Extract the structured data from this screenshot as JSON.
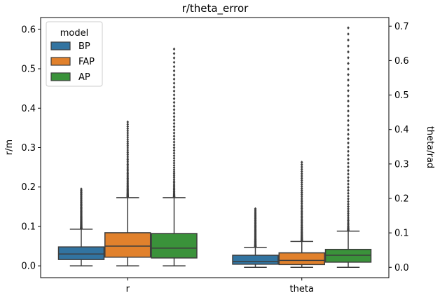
{
  "chart_data": {
    "type": "boxplot",
    "title": "r/theta_error",
    "categories": [
      "r",
      "theta"
    ],
    "left_axis": {
      "label": "r/m",
      "ylim": [
        -0.03,
        0.63
      ],
      "ticks": [
        0.0,
        0.1,
        0.2,
        0.3,
        0.4,
        0.5,
        0.6
      ],
      "tick_labels": [
        "0.0",
        "0.1",
        "0.2",
        "0.3",
        "0.4",
        "0.5",
        "0.6"
      ]
    },
    "right_axis": {
      "label": "theta/rad",
      "ylim": [
        -0.03,
        0.725
      ],
      "ticks": [
        0.0,
        0.1,
        0.2,
        0.3,
        0.4,
        0.5,
        0.6,
        0.7
      ],
      "tick_labels": [
        "0.0",
        "0.1",
        "0.2",
        "0.3",
        "0.4",
        "0.5",
        "0.6",
        "0.7"
      ]
    },
    "legend": {
      "title": "model",
      "position": "top-left",
      "entries": [
        "BP",
        "FAP",
        "AP"
      ]
    },
    "series": [
      {
        "name": "BP",
        "color": "#3274a1",
        "boxes": [
          {
            "category": "r",
            "axis": "left",
            "whisker_low": 0.0,
            "q1": 0.016,
            "median": 0.03,
            "q3": 0.048,
            "whisker_high": 0.093,
            "outlier_min": 0.095,
            "outlier_max": 0.195
          },
          {
            "category": "theta",
            "axis": "right",
            "whisker_low": 0.0,
            "q1": 0.009,
            "median": 0.017,
            "q3": 0.035,
            "whisker_high": 0.058,
            "outlier_min": 0.06,
            "outlier_max": 0.17
          }
        ]
      },
      {
        "name": "FAP",
        "color": "#e1812c",
        "boxes": [
          {
            "category": "r",
            "axis": "left",
            "whisker_low": 0.0,
            "q1": 0.022,
            "median": 0.05,
            "q3": 0.084,
            "whisker_high": 0.173,
            "outlier_min": 0.175,
            "outlier_max": 0.365
          },
          {
            "category": "theta",
            "axis": "right",
            "whisker_low": 0.0,
            "q1": 0.008,
            "median": 0.02,
            "q3": 0.042,
            "whisker_high": 0.075,
            "outlier_min": 0.077,
            "outlier_max": 0.305
          }
        ]
      },
      {
        "name": "AP",
        "color": "#3a923a",
        "boxes": [
          {
            "category": "r",
            "axis": "left",
            "whisker_low": 0.0,
            "q1": 0.02,
            "median": 0.045,
            "q3": 0.082,
            "whisker_high": 0.173,
            "outlier_min": 0.175,
            "outlier_max": 0.55
          },
          {
            "category": "theta",
            "axis": "right",
            "whisker_low": 0.0,
            "q1": 0.015,
            "median": 0.035,
            "q3": 0.052,
            "whisker_high": 0.105,
            "outlier_min": 0.107,
            "outlier_max": 0.695
          }
        ]
      }
    ]
  }
}
